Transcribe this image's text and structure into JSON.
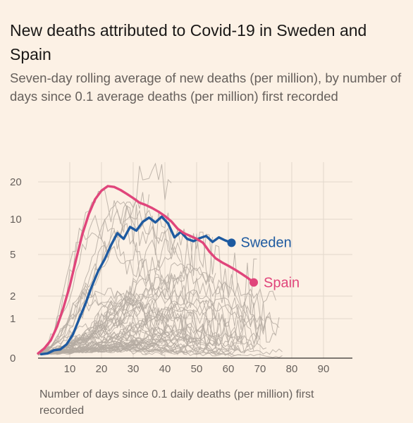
{
  "title": "New deaths attributed to Covid-19 in Sweden and Spain",
  "subtitle": "Seven-day rolling average of new deaths (per million), by number of days since 0.1 average deaths (per million) first recorded",
  "chart_data": {
    "type": "line",
    "title": "New deaths attributed to Covid-19 in Sweden and Spain",
    "subtitle": "Seven-day rolling average of new deaths (per million), by number of days since 0.1 average deaths (per million) first recorded",
    "xlabel": "Number of days since 0.1 daily deaths (per million) first recorded",
    "ylabel": "",
    "x_ticks": [
      10,
      20,
      30,
      40,
      50,
      60,
      70,
      80,
      90
    ],
    "y_ticks": [
      0,
      1,
      2,
      5,
      10,
      20
    ],
    "xlim": [
      0,
      100
    ],
    "ylim": [
      0,
      28
    ],
    "y_scale": "log-like (symlog)",
    "grid": true,
    "series": [
      {
        "name": "Sweden",
        "color": "#1e5aa0",
        "points": [
          [
            1,
            0.1
          ],
          [
            3,
            0.12
          ],
          [
            5,
            0.2
          ],
          [
            7,
            0.22
          ],
          [
            9,
            0.35
          ],
          [
            11,
            0.6
          ],
          [
            13,
            1.0
          ],
          [
            15,
            1.6
          ],
          [
            17,
            2.5
          ],
          [
            19,
            3.5
          ],
          [
            21,
            4.5
          ],
          [
            23,
            6.0
          ],
          [
            25,
            7.6
          ],
          [
            27,
            6.8
          ],
          [
            29,
            8.6
          ],
          [
            31,
            8.0
          ],
          [
            33,
            9.5
          ],
          [
            35,
            10.3
          ],
          [
            37,
            9.4
          ],
          [
            39,
            10.5
          ],
          [
            41,
            9.2
          ],
          [
            43,
            7.0
          ],
          [
            45,
            7.8
          ],
          [
            47,
            6.8
          ],
          [
            49,
            6.5
          ],
          [
            51,
            6.9
          ],
          [
            53,
            7.2
          ],
          [
            55,
            6.4
          ],
          [
            57,
            7.0
          ],
          [
            59,
            6.6
          ],
          [
            61,
            6.3
          ]
        ]
      },
      {
        "name": "Spain",
        "color": "#e0457b",
        "points": [
          [
            0,
            0.12
          ],
          [
            2,
            0.25
          ],
          [
            4,
            0.45
          ],
          [
            6,
            0.8
          ],
          [
            8,
            1.4
          ],
          [
            10,
            2.5
          ],
          [
            12,
            4.5
          ],
          [
            14,
            7.5
          ],
          [
            16,
            11
          ],
          [
            18,
            14.5
          ],
          [
            20,
            17
          ],
          [
            22,
            18.5
          ],
          [
            24,
            18.2
          ],
          [
            26,
            17.2
          ],
          [
            28,
            16
          ],
          [
            30,
            14.8
          ],
          [
            32,
            13.6
          ],
          [
            34,
            13
          ],
          [
            36,
            12.3
          ],
          [
            38,
            11.5
          ],
          [
            40,
            10.6
          ],
          [
            42,
            9.6
          ],
          [
            44,
            8.3
          ],
          [
            46,
            7.6
          ],
          [
            48,
            7.2
          ],
          [
            50,
            6.8
          ],
          [
            52,
            6.3
          ],
          [
            54,
            5.3
          ],
          [
            56,
            4.6
          ],
          [
            58,
            4.2
          ],
          [
            60,
            3.9
          ],
          [
            62,
            3.6
          ],
          [
            64,
            3.3
          ],
          [
            66,
            3.0
          ],
          [
            68,
            2.7
          ]
        ]
      }
    ],
    "background_series_count": 60,
    "background_color": "#b5aba2"
  }
}
